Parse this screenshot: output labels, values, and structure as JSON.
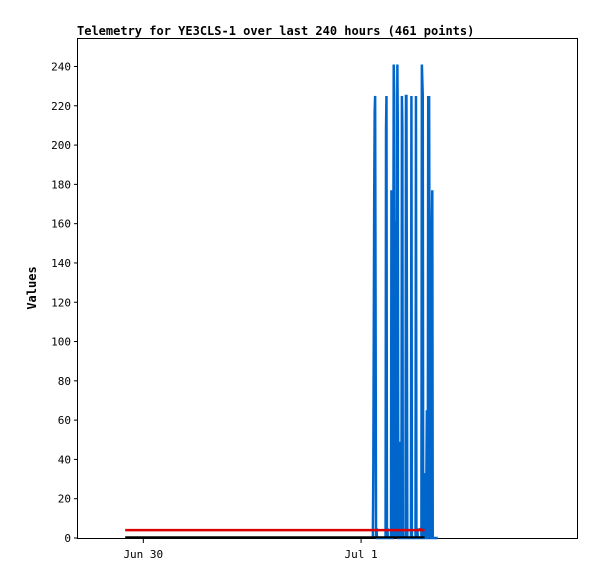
{
  "chart_data": {
    "type": "line",
    "title": "Telemetry for YE3CLS-1 over last 240 hours (461 points)",
    "xlabel": "",
    "ylabel": "Values",
    "ylim": [
      0,
      254
    ],
    "yticks": [
      0,
      20,
      40,
      60,
      80,
      100,
      120,
      140,
      160,
      180,
      200,
      220,
      240
    ],
    "xlim": [
      -7.2,
      47.8
    ],
    "xticks": [
      {
        "x": 0,
        "label": "Jun 30"
      },
      {
        "x": 24,
        "label": "Jul 1"
      }
    ],
    "grid": false,
    "legend": "none",
    "series": [
      {
        "color": "#0066cc",
        "x": [
          25.3,
          25.35,
          25.4,
          25.45,
          25.5,
          25.55,
          25.6,
          25.65,
          25.7,
          25.75,
          26.7,
          26.75,
          26.8,
          26.85,
          26.9,
          26.95,
          27.3,
          27.35,
          27.4,
          27.45,
          27.5,
          27.55,
          27.6,
          27.65,
          27.7,
          27.75,
          27.8,
          27.85,
          27.9,
          27.95,
          28.0,
          28.05,
          28.1,
          28.15,
          28.2,
          28.25,
          28.3,
          28.35,
          28.4,
          28.45,
          28.5,
          28.55,
          28.6,
          28.65,
          28.9,
          28.95,
          29.0,
          29.05,
          29.1,
          29.15,
          29.5,
          29.55,
          29.6,
          29.65,
          30.0,
          30.05,
          30.1,
          30.15,
          30.2,
          30.25,
          30.6,
          30.65,
          30.7,
          30.75,
          30.8,
          30.85,
          31.0,
          31.05,
          31.1,
          31.15,
          31.2,
          31.25,
          31.3,
          31.35,
          31.4,
          31.45,
          31.5,
          31.55,
          31.6,
          31.65,
          31.7,
          31.75,
          31.8,
          31.85,
          31.9,
          31.95,
          32.0,
          32.05,
          32.1,
          32.15,
          32.2,
          32.25,
          32.3,
          32.35,
          32.4,
          32.45
        ],
        "y": [
          0,
          35,
          104,
          174,
          217,
          225,
          113,
          0,
          5,
          0,
          0,
          208,
          225,
          0,
          5,
          0,
          0,
          177,
          88,
          0,
          0,
          121,
          241,
          225,
          112,
          0,
          81,
          161,
          0,
          121,
          241,
          209,
          0,
          0,
          49,
          0,
          0,
          0,
          5,
          0,
          225,
          209,
          0,
          0,
          0,
          225,
          225,
          113,
          0,
          0,
          0,
          225,
          0,
          0,
          0,
          225,
          0,
          0,
          5,
          0,
          0,
          0,
          241,
          233,
          225,
          0,
          0,
          33,
          0,
          0,
          32,
          65,
          0,
          0,
          225,
          209,
          225,
          113,
          0,
          81,
          0,
          0,
          161,
          177,
          0,
          0,
          0,
          0,
          0,
          0,
          0,
          0,
          0,
          0,
          0,
          0
        ]
      },
      {
        "color": "#dd0000",
        "x": [
          -2,
          30.5,
          30.55,
          30.6,
          31.0
        ],
        "y": [
          4,
          4,
          5,
          4,
          4
        ]
      },
      {
        "color": "#000000",
        "x": [
          -2,
          31.0
        ],
        "y": [
          0.4,
          0.4
        ]
      }
    ]
  }
}
